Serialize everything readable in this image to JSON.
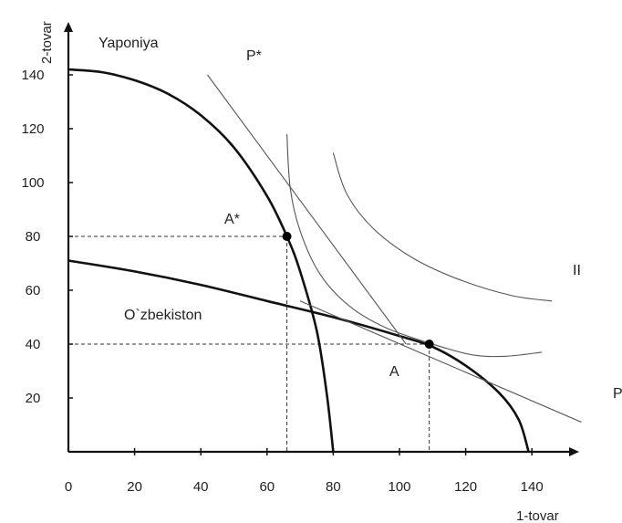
{
  "chart_data": {
    "type": "line",
    "title": "",
    "xlabel": "1-tovar",
    "ylabel": "2-tovar",
    "xlim": [
      0,
      152
    ],
    "ylim": [
      0,
      150
    ],
    "x_ticks": [
      0,
      20,
      40,
      60,
      80,
      100,
      120,
      140
    ],
    "x_tick_labels": [
      "0",
      "20",
      "40",
      "60",
      "80",
      "100",
      "120",
      "140"
    ],
    "y_ticks": [
      20,
      40,
      60,
      80,
      100,
      120,
      140
    ],
    "y_tick_labels": [
      "20",
      "40",
      "60",
      "80",
      "100",
      "120",
      "140"
    ],
    "grid": false,
    "series": [
      {
        "name": "Yaponiya",
        "style": "bold",
        "points": [
          [
            0,
            142
          ],
          [
            10,
            141
          ],
          [
            20,
            138
          ],
          [
            30,
            133
          ],
          [
            40,
            125
          ],
          [
            50,
            113
          ],
          [
            60,
            95
          ],
          [
            66,
            80
          ],
          [
            70,
            67
          ],
          [
            75,
            45
          ],
          [
            78,
            22
          ],
          [
            80,
            0
          ]
        ]
      },
      {
        "name": "O`zbekiston",
        "style": "bold",
        "points": [
          [
            0,
            71
          ],
          [
            20,
            67
          ],
          [
            40,
            62
          ],
          [
            60,
            56
          ],
          [
            80,
            50
          ],
          [
            100,
            43
          ],
          [
            110,
            39
          ],
          [
            120,
            32
          ],
          [
            130,
            22
          ],
          [
            136,
            12
          ],
          [
            139,
            0
          ]
        ]
      },
      {
        "name": "P*",
        "style": "thin",
        "points": [
          [
            42,
            140
          ],
          [
            102,
            40
          ]
        ]
      },
      {
        "name": "P",
        "style": "thin",
        "points": [
          [
            70,
            56
          ],
          [
            155,
            11
          ]
        ]
      },
      {
        "name": "indifference-1",
        "style": "thin",
        "points": [
          [
            66,
            118
          ],
          [
            67,
            98
          ],
          [
            70,
            82
          ],
          [
            76,
            66
          ],
          [
            85,
            54
          ],
          [
            96,
            46
          ],
          [
            110,
            40
          ],
          [
            122,
            36
          ],
          [
            132,
            35.5
          ],
          [
            143,
            37
          ]
        ]
      },
      {
        "name": "indifference-2",
        "style": "thin",
        "points": [
          [
            80,
            111
          ],
          [
            84,
            96
          ],
          [
            92,
            83
          ],
          [
            104,
            72
          ],
          [
            118,
            64
          ],
          [
            134,
            58
          ],
          [
            146,
            56
          ]
        ]
      }
    ],
    "points": [
      {
        "label": "A*",
        "x": 66,
        "y": 80
      },
      {
        "label": "A",
        "x": 109,
        "y": 40
      }
    ],
    "guides": [
      {
        "from": [
          0,
          80
        ],
        "to": [
          66,
          80
        ]
      },
      {
        "from": [
          66,
          80
        ],
        "to": [
          66,
          0
        ]
      },
      {
        "from": [
          0,
          40
        ],
        "to": [
          109,
          40
        ]
      },
      {
        "from": [
          109,
          40
        ],
        "to": [
          109,
          0
        ]
      }
    ],
    "annotations": [
      {
        "text": "Yaponiya"
      },
      {
        "text": "P*"
      },
      {
        "text": "A*"
      },
      {
        "text": "II"
      },
      {
        "text": "O`zbekiston"
      },
      {
        "text": "A"
      },
      {
        "text": "P"
      }
    ]
  }
}
